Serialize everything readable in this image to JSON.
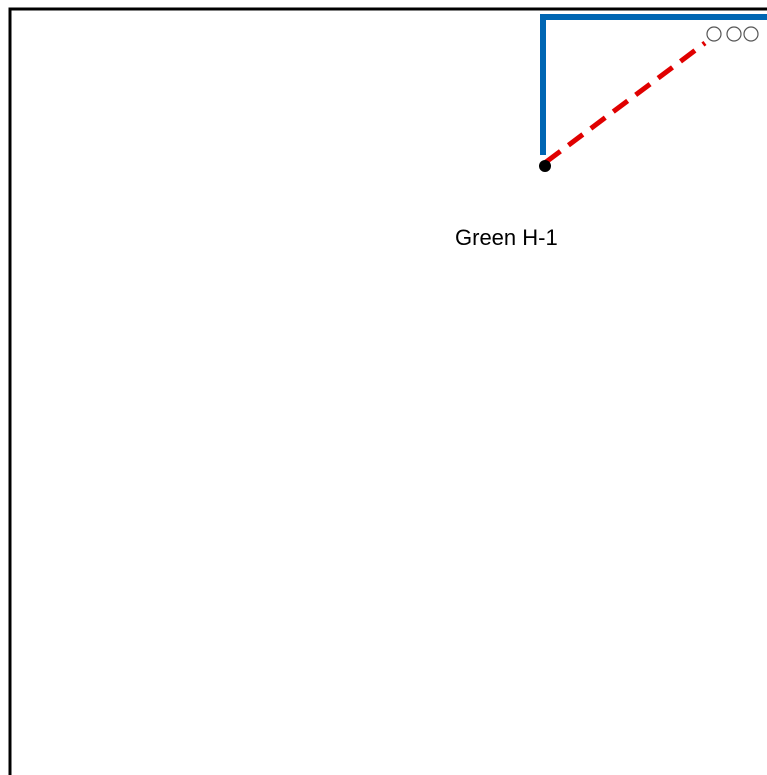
{
  "diagram": {
    "label": "Green H-1",
    "colors": {
      "frame": "#000000",
      "route": "#0066b3",
      "dashed_route": "#e00000",
      "node": "#000000",
      "markers": "#555555"
    }
  }
}
